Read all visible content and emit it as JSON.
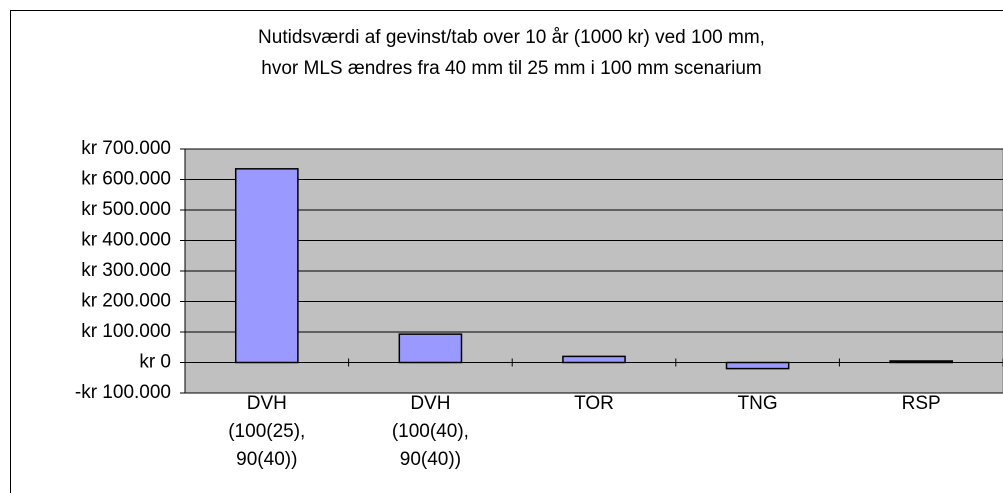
{
  "chart_data": {
    "type": "bar",
    "title": "Nutidsværdi af gevinst/tab over 10 år (1000 kr) ved 100 mm,\nhvor MLS ændres fra 40 mm til 25 mm i 100 mm scenarium",
    "categories": [
      "DVH\n(100(25),\n90(40))",
      "DVH\n(100(40),\n90(40))",
      "TOR",
      "TNG",
      "RSP"
    ],
    "values": [
      635000,
      93000,
      20000,
      -20000,
      5000
    ],
    "color": "#9999ff",
    "ylim": [
      -100000,
      700000
    ],
    "yticks": [
      {
        "value": -100000,
        "label": "-kr 100.000"
      },
      {
        "value": 0,
        "label": "kr 0"
      },
      {
        "value": 100000,
        "label": "kr 100.000"
      },
      {
        "value": 200000,
        "label": "kr 200.000"
      },
      {
        "value": 300000,
        "label": "kr 300.000"
      },
      {
        "value": 400000,
        "label": "kr 400.000"
      },
      {
        "value": 500000,
        "label": "kr 500.000"
      },
      {
        "value": 600000,
        "label": "kr 600.000"
      },
      {
        "value": 700000,
        "label": "kr 700.000"
      }
    ],
    "grid": true
  }
}
